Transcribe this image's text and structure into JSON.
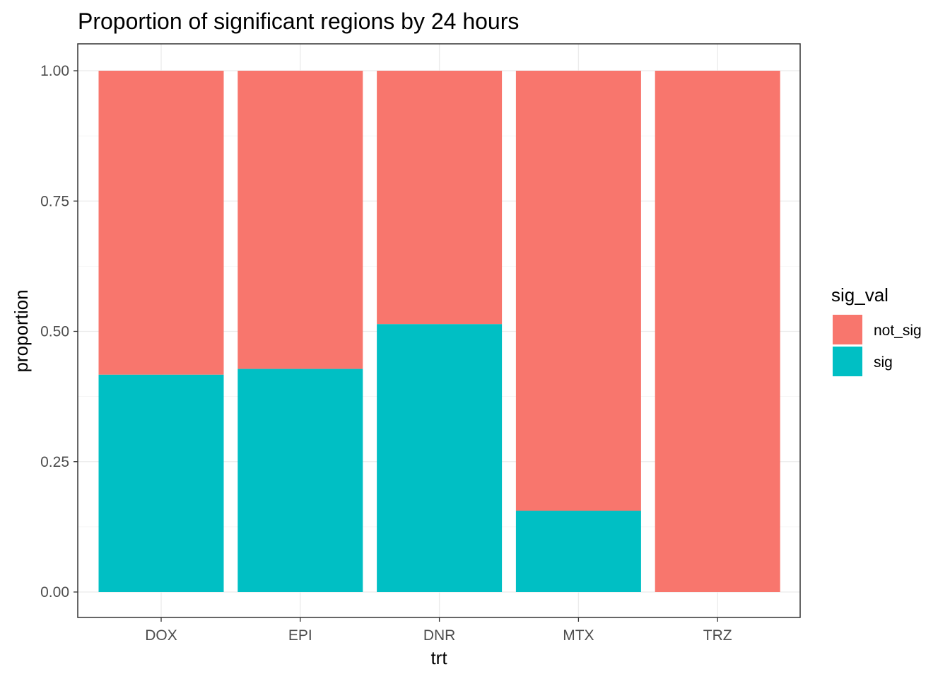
{
  "chart_data": {
    "type": "bar",
    "stacked": true,
    "title": "Proportion of significant regions by 24 hours",
    "xlabel": "trt",
    "ylabel": "proportion",
    "categories": [
      "DOX",
      "EPI",
      "DNR",
      "MTX",
      "TRZ"
    ],
    "series": [
      {
        "name": "sig",
        "color": "#00BFC4",
        "values": [
          0.417,
          0.428,
          0.514,
          0.156,
          0.0
        ]
      },
      {
        "name": "not_sig",
        "color": "#F8766D",
        "values": [
          0.583,
          0.572,
          0.486,
          0.844,
          1.0
        ]
      }
    ],
    "yticks": [
      0,
      0.25,
      0.5,
      0.75,
      1
    ],
    "ytick_labels": [
      "0.00",
      "0.25",
      "0.50",
      "0.75",
      "1.00"
    ],
    "ylim": [
      0,
      1
    ],
    "grid": true,
    "legend": {
      "title": "sig_val",
      "position": "right",
      "items": [
        {
          "label": "not_sig",
          "color": "#F8766D"
        },
        {
          "label": "sig",
          "color": "#00BFC4"
        }
      ]
    }
  }
}
